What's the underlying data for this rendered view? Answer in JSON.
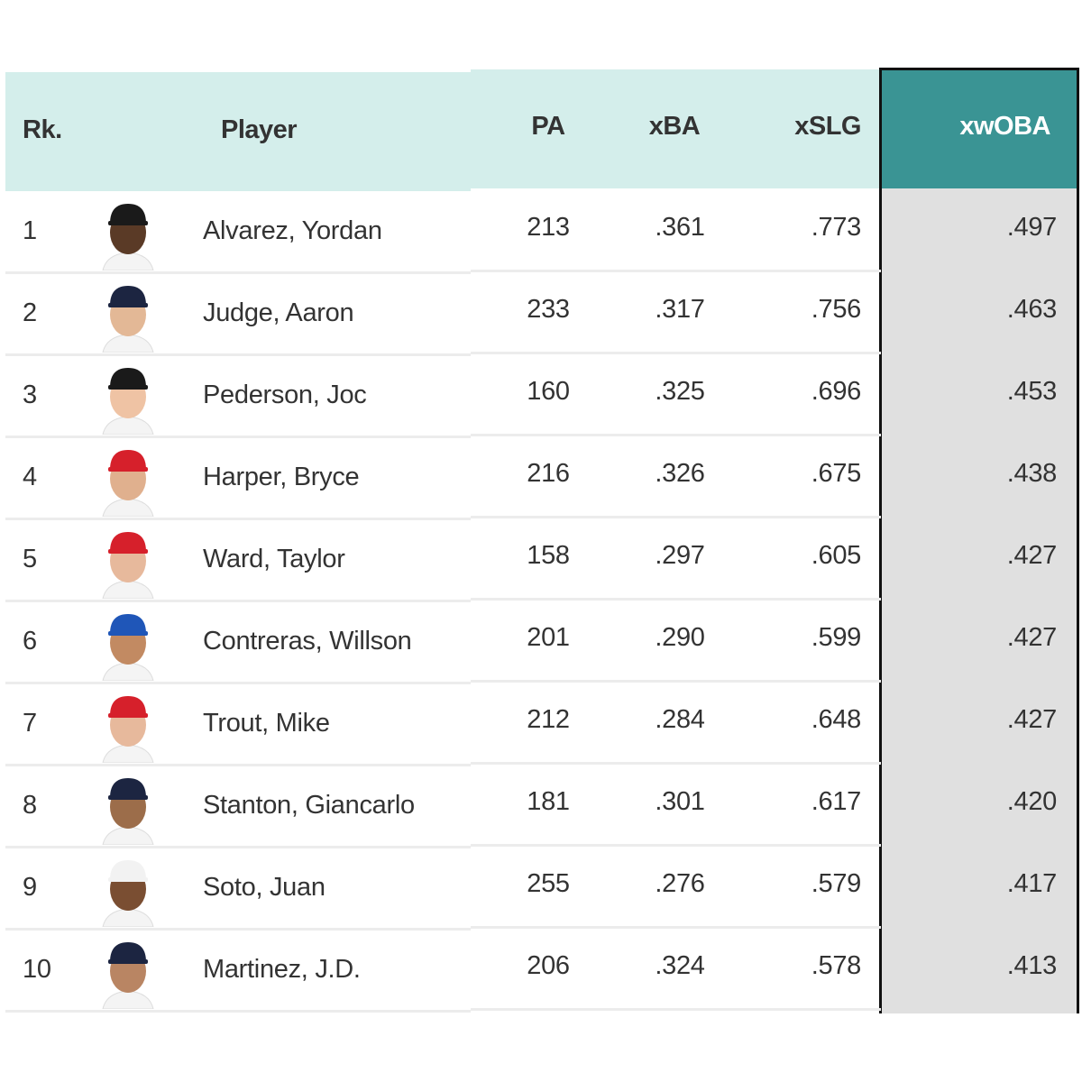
{
  "table": {
    "headers": [
      "Rk.",
      "Player",
      "PA",
      "xBA",
      "xSLG",
      "xwOBA"
    ],
    "rows": [
      [
        "1",
        "Alvarez, Yordan",
        "213",
        ".361",
        ".773",
        ".497"
      ],
      [
        "2",
        "Judge, Aaron",
        "233",
        ".317",
        ".756",
        ".463"
      ],
      [
        "3",
        "Pederson, Joc",
        "160",
        ".325",
        ".696",
        ".453"
      ],
      [
        "4",
        "Harper, Bryce",
        "216",
        ".326",
        ".675",
        ".438"
      ],
      [
        "5",
        "Ward, Taylor",
        "158",
        ".297",
        ".605",
        ".427"
      ],
      [
        "6",
        "Contreras, Willson",
        "201",
        ".290",
        ".599",
        ".427"
      ],
      [
        "7",
        "Trout, Mike",
        "212",
        ".284",
        ".648",
        ".427"
      ],
      [
        "8",
        "Stanton, Giancarlo",
        "181",
        ".301",
        ".617",
        ".420"
      ],
      [
        "9",
        "Soto, Juan",
        "255",
        ".276",
        ".579",
        ".417"
      ],
      [
        "10",
        "Martinez, J.D.",
        "206",
        ".324",
        ".578",
        ".413"
      ]
    ]
  }
}
